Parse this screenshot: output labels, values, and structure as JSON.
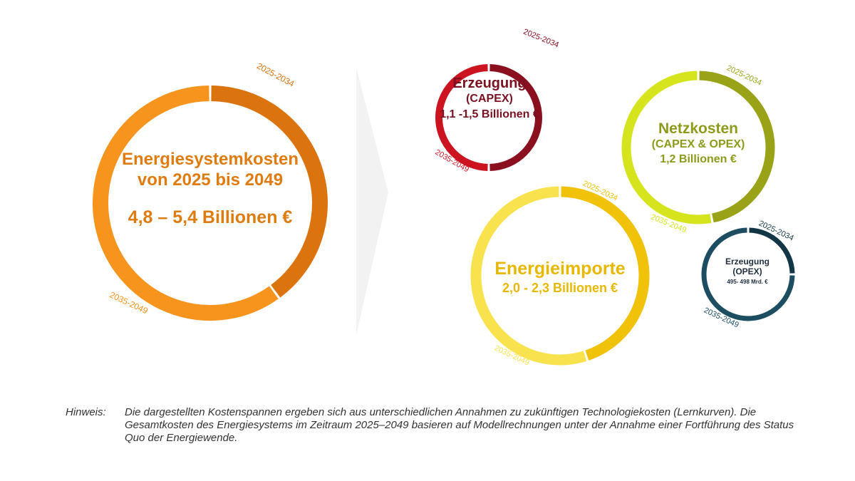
{
  "circles": [
    {
      "id": "total",
      "title": "Energiesystemkosten",
      "subtitle": "von 2025 bis 2049",
      "value": "4,8 – 5,4 Billionen €",
      "label_early": "2025-2034",
      "label_late": "2035-2049",
      "share_early": 0.4,
      "color_late": "#F7941D",
      "color_early": "#DB730F",
      "text_color": "#E07B10"
    },
    {
      "id": "erzeugung-capex",
      "title": "Erzeugung",
      "subtitle": "(CAPEX)",
      "value": "1,1 -1,5 Billionen €",
      "label_early": "2025-2034",
      "label_late": "2035-2049",
      "share_early": 0.5,
      "color_late": "#CC1420",
      "color_early": "#8A1020",
      "text_color": "#7A1020"
    },
    {
      "id": "netzkosten",
      "title": "Netzkosten",
      "subtitle": "(CAPEX & OPEX)",
      "value": "1,2 Billionen €",
      "label_early": "2025-2034",
      "label_late": "2035-2049",
      "share_early": 0.47,
      "color_late": "#D6E41E",
      "color_early": "#9AA218",
      "text_color": "#8E9A1A"
    },
    {
      "id": "energieimporte",
      "title": "Energieimporte",
      "value": "2,0 - 2,3 Billionen €",
      "label_early": "2025-2034",
      "label_late": "2035-2049",
      "share_early": 0.45,
      "color_late": "#F8E34E",
      "color_early": "#F0C20A",
      "text_color": "#E8B800"
    },
    {
      "id": "erzeugung-opex",
      "title": "Erzeugung",
      "subtitle": "(OPEX)",
      "value": "495- 498 Mrd. €",
      "label_early": "2025-2034",
      "label_late": "2035-2049",
      "share_early": 0.25,
      "color_late": "#1C4D60",
      "color_early": "#123646",
      "text_color": "#1F2F3F"
    }
  ],
  "note": {
    "label": "Hinweis:",
    "text": "Die dargestellten Kostenspannen ergeben sich aus unterschiedlichen Annahmen zu zukünftigen Technologiekosten (Lernkurven). Die Gesamtkosten des Energiesystems im Zeitraum 2025–2049 basieren auf Modellrechnungen unter der Annahme einer Fortführung des Status Quo der Energiewende."
  }
}
